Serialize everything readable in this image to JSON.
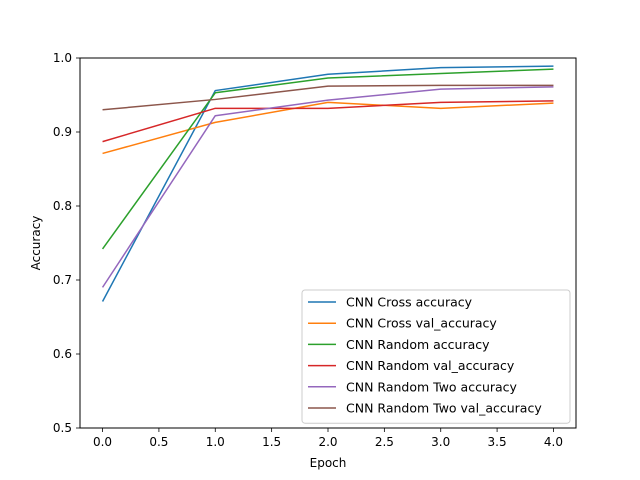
{
  "chart_data": {
    "type": "line",
    "title": "",
    "xlabel": "Epoch",
    "ylabel": "Accuracy",
    "xlim": [
      -0.2,
      4.2
    ],
    "ylim": [
      0.5,
      1.0
    ],
    "x_ticks": [
      0.0,
      0.5,
      1.0,
      1.5,
      2.0,
      2.5,
      3.0,
      3.5,
      4.0
    ],
    "x_tick_labels": [
      "0.0",
      "0.5",
      "1.0",
      "1.5",
      "2.0",
      "2.5",
      "3.0",
      "3.5",
      "4.0"
    ],
    "y_ticks": [
      0.5,
      0.6,
      0.7,
      0.8,
      0.9,
      1.0
    ],
    "y_tick_labels": [
      "0.5",
      "0.6",
      "0.7",
      "0.8",
      "0.9",
      "1.0"
    ],
    "grid": false,
    "legend_position": "lower-right",
    "x": [
      0,
      1,
      2,
      3,
      4
    ],
    "series": [
      {
        "name": "CNN Cross accuracy",
        "color": "#1f77b4",
        "values": [
          0.671,
          0.956,
          0.978,
          0.987,
          0.989
        ]
      },
      {
        "name": "CNN Cross val_accuracy",
        "color": "#ff7f0e",
        "values": [
          0.871,
          0.913,
          0.94,
          0.932,
          0.939
        ]
      },
      {
        "name": "CNN Random accuracy",
        "color": "#2ca02c",
        "values": [
          0.742,
          0.953,
          0.973,
          0.979,
          0.985
        ]
      },
      {
        "name": "CNN Random val_accuracy",
        "color": "#d62728",
        "values": [
          0.887,
          0.932,
          0.932,
          0.94,
          0.942
        ]
      },
      {
        "name": "CNN Random Two accuracy",
        "color": "#9467bd",
        "values": [
          0.69,
          0.922,
          0.943,
          0.958,
          0.961
        ]
      },
      {
        "name": "CNN Random Two val_accuracy",
        "color": "#8c564b",
        "values": [
          0.93,
          0.944,
          0.962,
          0.963,
          0.963
        ]
      }
    ]
  }
}
